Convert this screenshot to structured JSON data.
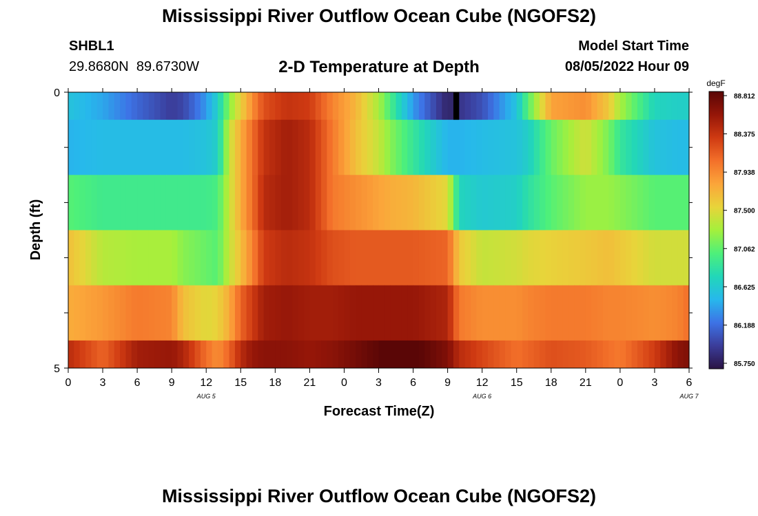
{
  "header": {
    "title": "Mississippi River Outflow Ocean Cube (NGOFS2)",
    "station_id": "SHBL1",
    "station_coords": "29.8680N  89.6730W",
    "model_start_label": "Model Start Time",
    "model_start_value": "08/05/2022 Hour 09"
  },
  "footer": {
    "title": "Mississippi River Outflow Ocean Cube (NGOFS2)"
  },
  "chart_data": {
    "type": "heatmap",
    "title": "2-D Temperature at Depth",
    "xlabel": "Forecast Time(Z)",
    "ylabel": "Depth (ft)",
    "x_tick_labels": [
      "0",
      "3",
      "6",
      "9",
      "12",
      "15",
      "18",
      "21",
      "0",
      "3",
      "6",
      "9",
      "12",
      "15",
      "18",
      "21",
      "0",
      "3",
      "6"
    ],
    "date_labels": [
      {
        "label": "AUG 5",
        "hour_index": 12
      },
      {
        "label": "AUG 6",
        "hour_index": 36
      },
      {
        "label": "AUG 7",
        "hour_index": 54
      }
    ],
    "y_tick_labels": [
      "0",
      "5"
    ],
    "ylim": [
      0,
      5
    ],
    "n_hours": 54,
    "depth_layers_ft": [
      0.25,
      1,
      2,
      3,
      4,
      4.75
    ],
    "layer_boundaries_ft": [
      0,
      0.5,
      1.5,
      2.5,
      3.5,
      4.5,
      5
    ],
    "colorbar": {
      "unit": "degF",
      "min": 85.75,
      "max": 88.812,
      "tick_labels": [
        "88.812",
        "88.375",
        "87.938",
        "87.500",
        "87.062",
        "86.625",
        "86.188",
        "85.750"
      ],
      "colors": [
        "#2a1344",
        "#3b3d9a",
        "#3d73e6",
        "#27b8ec",
        "#22d7b8",
        "#4ef07a",
        "#a4f03c",
        "#e8d43a",
        "#fba53a",
        "#f3702a",
        "#cf3a12",
        "#951608",
        "#5a0606"
      ]
    },
    "control_points": [
      {
        "hour": 0,
        "values": [
          86.6,
          86.5,
          87.05,
          87.65,
          87.75,
          88.4
        ]
      },
      {
        "hour": 3,
        "values": [
          86.45,
          86.55,
          86.95,
          87.35,
          87.85,
          88.1
        ]
      },
      {
        "hour": 6,
        "values": [
          86.2,
          86.55,
          86.95,
          87.3,
          88.0,
          88.5
        ]
      },
      {
        "hour": 9,
        "values": [
          86.0,
          86.55,
          86.95,
          87.3,
          87.95,
          88.55
        ]
      },
      {
        "hour": 10,
        "values": [
          86.05,
          86.55,
          86.95,
          87.2,
          87.65,
          88.45
        ]
      },
      {
        "hour": 12,
        "values": [
          86.4,
          86.6,
          86.95,
          87.1,
          87.5,
          88.05
        ]
      },
      {
        "hour": 13,
        "values": [
          86.7,
          86.7,
          87.0,
          87.05,
          87.55,
          87.9
        ]
      },
      {
        "hour": 14,
        "values": [
          87.2,
          87.4,
          87.4,
          87.4,
          87.75,
          88.1
        ]
      },
      {
        "hour": 15,
        "values": [
          87.55,
          87.75,
          87.75,
          87.65,
          88.1,
          88.4
        ]
      },
      {
        "hour": 16,
        "values": [
          87.9,
          88.05,
          88.05,
          87.95,
          88.3,
          88.55
        ]
      },
      {
        "hour": 17,
        "values": [
          88.2,
          88.35,
          88.4,
          88.3,
          88.5,
          88.6
        ]
      },
      {
        "hour": 19,
        "values": [
          88.35,
          88.5,
          88.5,
          88.4,
          88.55,
          88.6
        ]
      },
      {
        "hour": 21,
        "values": [
          88.3,
          88.4,
          88.4,
          88.35,
          88.5,
          88.55
        ]
      },
      {
        "hour": 23,
        "values": [
          87.95,
          88.0,
          88.0,
          88.2,
          88.5,
          88.6
        ]
      },
      {
        "hour": 25,
        "values": [
          87.7,
          87.65,
          87.9,
          88.15,
          88.55,
          88.7
        ]
      },
      {
        "hour": 27,
        "values": [
          87.3,
          87.4,
          87.8,
          88.15,
          88.55,
          88.8
        ]
      },
      {
        "hour": 28,
        "values": [
          87.0,
          87.2,
          87.75,
          88.15,
          88.55,
          88.85
        ]
      },
      {
        "hour": 30,
        "values": [
          86.4,
          86.9,
          87.7,
          88.15,
          88.55,
          88.85
        ]
      },
      {
        "hour": 33,
        "values": [
          85.85,
          86.5,
          87.5,
          88.1,
          88.45,
          88.65
        ]
      },
      {
        "hour": 34,
        "values": [
          85.95,
          86.5,
          86.75,
          87.6,
          88.0,
          88.4
        ]
      },
      {
        "hour": 36,
        "values": [
          86.1,
          86.55,
          86.65,
          87.4,
          87.9,
          88.25
        ]
      },
      {
        "hour": 39,
        "values": [
          86.6,
          86.6,
          86.7,
          87.45,
          87.9,
          88.05
        ]
      },
      {
        "hour": 40,
        "values": [
          87.05,
          86.7,
          86.85,
          87.5,
          87.95,
          88.1
        ]
      },
      {
        "hour": 42,
        "values": [
          87.8,
          87.1,
          87.05,
          87.55,
          88.0,
          88.2
        ]
      },
      {
        "hour": 45,
        "values": [
          87.9,
          87.45,
          87.25,
          87.6,
          88.0,
          88.15
        ]
      },
      {
        "hour": 47,
        "values": [
          87.6,
          87.15,
          87.25,
          87.65,
          87.95,
          88.05
        ]
      },
      {
        "hour": 48,
        "values": [
          87.3,
          86.9,
          87.2,
          87.6,
          87.95,
          88.0
        ]
      },
      {
        "hour": 51,
        "values": [
          86.75,
          86.6,
          87.05,
          87.45,
          87.9,
          88.3
        ]
      },
      {
        "hour": 53,
        "values": [
          86.7,
          86.55,
          87.05,
          87.45,
          87.95,
          88.6
        ]
      },
      {
        "hour": 54,
        "values": [
          86.7,
          86.55,
          87.05,
          87.45,
          88.05,
          88.65
        ]
      }
    ],
    "missing_data": [
      {
        "hour": 33.5,
        "layer": 0
      }
    ]
  }
}
